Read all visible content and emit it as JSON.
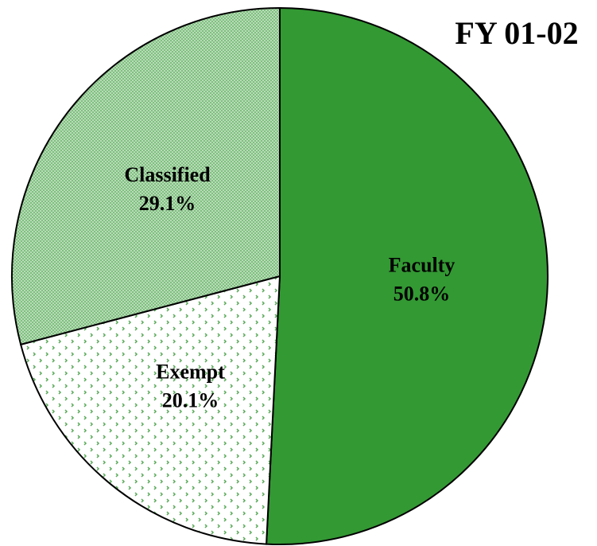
{
  "chart_data": {
    "type": "pie",
    "title": "FY 01-02",
    "categories": [
      "Faculty",
      "Exempt",
      "Classified"
    ],
    "values": [
      50.8,
      20.1,
      29.1
    ],
    "value_labels": [
      "50.8%",
      "20.1%",
      "29.1%"
    ],
    "colors": [
      "#339933",
      "#339933",
      "#339933"
    ],
    "patterns": [
      "solid",
      "dots",
      "checker"
    ]
  }
}
